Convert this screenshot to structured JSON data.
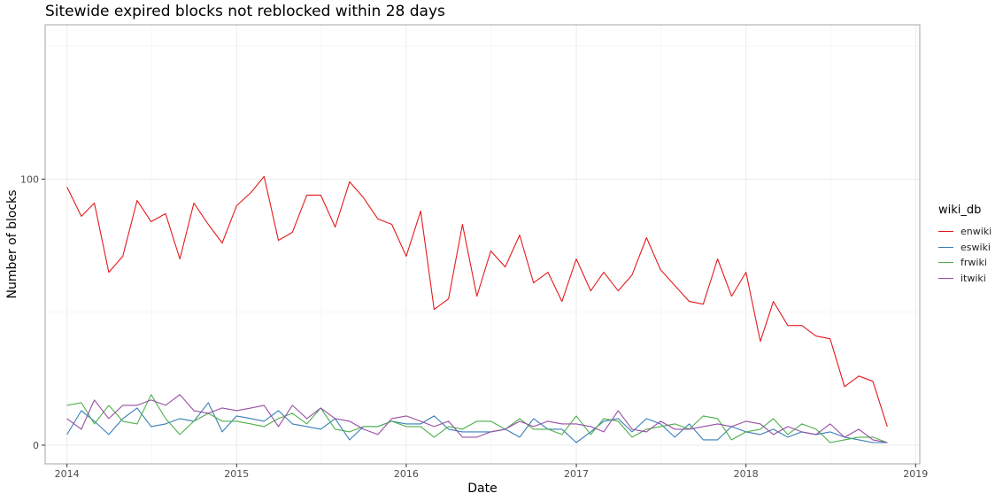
{
  "chart_data": {
    "type": "line",
    "title": "Sitewide expired blocks not reblocked within 28 days",
    "xlabel": "Date",
    "ylabel": "Number of blocks",
    "x_ticks": [
      "2014",
      "2015",
      "2016",
      "2017",
      "2018",
      "2019"
    ],
    "y_ticks": [
      "0",
      "100"
    ],
    "xlim": [
      "2013-11-15",
      "2019-01-10"
    ],
    "ylim": [
      -7,
      158
    ],
    "grid": true,
    "legend": {
      "title": "wiki_db",
      "position": "right"
    },
    "x": [
      "2014-01",
      "2014-02",
      "2014-03",
      "2014-04",
      "2014-05",
      "2014-06",
      "2014-07",
      "2014-08",
      "2014-09",
      "2014-10",
      "2014-11",
      "2014-12",
      "2015-01",
      "2015-02",
      "2015-03",
      "2015-04",
      "2015-05",
      "2015-06",
      "2015-07",
      "2015-08",
      "2015-09",
      "2015-10",
      "2015-11",
      "2015-12",
      "2016-01",
      "2016-02",
      "2016-03",
      "2016-04",
      "2016-05",
      "2016-06",
      "2016-07",
      "2016-08",
      "2016-09",
      "2016-10",
      "2016-11",
      "2016-12",
      "2017-01",
      "2017-02",
      "2017-03",
      "2017-04",
      "2017-05",
      "2017-06",
      "2017-07",
      "2017-08",
      "2017-09",
      "2017-10",
      "2017-11",
      "2017-12",
      "2018-01",
      "2018-02",
      "2018-03",
      "2018-04",
      "2018-05",
      "2018-06",
      "2018-07",
      "2018-08",
      "2018-09",
      "2018-10",
      "2018-11"
    ],
    "series": [
      {
        "name": "enwiki",
        "color": "#e41a1c",
        "values": [
          97,
          86,
          91,
          65,
          71,
          92,
          84,
          87,
          70,
          91,
          83,
          76,
          90,
          95,
          101,
          77,
          80,
          94,
          94,
          82,
          99,
          93,
          85,
          83,
          71,
          88,
          51,
          55,
          83,
          56,
          73,
          67,
          79,
          61,
          65,
          54,
          70,
          58,
          65,
          58,
          64,
          78,
          66,
          60,
          54,
          53,
          70,
          56,
          65,
          39,
          54,
          45,
          45,
          41,
          40,
          22,
          26,
          24,
          7
        ]
      },
      {
        "name": "eswiki",
        "color": "#377eb8",
        "values": [
          4,
          13,
          9,
          4,
          10,
          14,
          7,
          8,
          10,
          9,
          16,
          5,
          11,
          10,
          9,
          13,
          8,
          7,
          6,
          10,
          2,
          7,
          7,
          9,
          8,
          8,
          11,
          6,
          5,
          5,
          5,
          6,
          3,
          10,
          6,
          6,
          1,
          5,
          9,
          10,
          5,
          10,
          8,
          3,
          8,
          2,
          2,
          7,
          5,
          4,
          6,
          3,
          5,
          4,
          5,
          3,
          2,
          1,
          1
        ]
      },
      {
        "name": "frwiki",
        "color": "#4daf4a",
        "values": [
          15,
          16,
          8,
          15,
          9,
          8,
          19,
          10,
          4,
          9,
          12,
          9,
          9,
          8,
          7,
          10,
          12,
          8,
          14,
          6,
          5,
          7,
          7,
          9,
          7,
          7,
          3,
          7,
          6,
          9,
          9,
          6,
          10,
          6,
          6,
          4,
          11,
          4,
          10,
          9,
          3,
          6,
          7,
          8,
          6,
          11,
          10,
          2,
          5,
          6,
          10,
          4,
          8,
          6,
          1,
          2,
          3,
          3,
          1
        ]
      },
      {
        "name": "itwiki",
        "color": "#984ea3",
        "values": [
          10,
          6,
          17,
          10,
          15,
          15,
          17,
          15,
          19,
          13,
          12,
          14,
          13,
          14,
          15,
          7,
          15,
          10,
          14,
          10,
          9,
          6,
          4,
          10,
          11,
          9,
          7,
          9,
          3,
          3,
          5,
          6,
          9,
          7,
          9,
          8,
          8,
          7,
          5,
          13,
          6,
          5,
          9,
          6,
          6,
          7,
          8,
          7,
          9,
          8,
          4,
          7,
          5,
          4,
          8,
          3,
          6,
          2,
          1
        ]
      }
    ]
  }
}
